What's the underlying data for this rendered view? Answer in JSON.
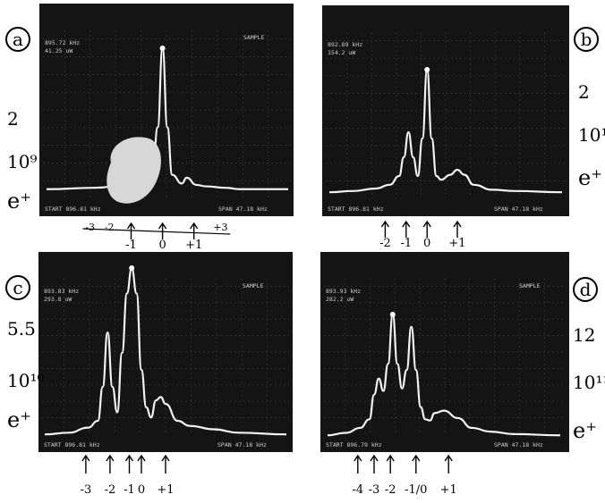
{
  "chart_data": [
    {
      "panel_id": "a",
      "type": "line",
      "left_labels": [
        "2",
        "10⁹",
        "e⁺"
      ],
      "screen_text": {
        "marker_freq": "895.72 kHz",
        "marker_level": "41.25 uW",
        "mode": "SAMPLE",
        "start": "START 896.81 kHz",
        "stop": "SPAN 47.18 kHz"
      },
      "x": [
        0,
        0.2,
        0.34,
        0.4,
        0.44,
        0.46,
        0.48,
        0.5,
        0.52,
        0.56,
        0.58,
        0.62,
        0.66,
        0.74,
        0.8,
        0.86,
        0.92,
        1.0
      ],
      "y": [
        0.02,
        0.03,
        0.05,
        0.08,
        0.16,
        0.45,
        1.0,
        0.45,
        0.12,
        0.06,
        0.1,
        0.05,
        0.04,
        0.03,
        0.02,
        0.02,
        0.02,
        0.02
      ],
      "ylim": [
        0,
        1
      ],
      "sideband_labels": [
        "-1",
        "0",
        "+1"
      ],
      "sideband_x": [
        0.35,
        0.48,
        0.61
      ],
      "extra_struck_marks": [
        "-3",
        "-2",
        "+3"
      ]
    },
    {
      "panel_id": "b",
      "type": "line",
      "left_labels": [
        "2",
        "10¹⁰",
        "e⁺"
      ],
      "screen_text": {
        "marker_freq": "892.89 kHz",
        "marker_level": "154.2 uW",
        "start": "START 896.81 kHz",
        "stop": "SPAN 47.18 kHz"
      },
      "x": [
        0,
        0.1,
        0.2,
        0.26,
        0.3,
        0.32,
        0.34,
        0.36,
        0.38,
        0.4,
        0.42,
        0.44,
        0.46,
        0.48,
        0.52,
        0.55,
        0.58,
        0.62,
        0.7,
        0.8,
        1.0
      ],
      "y": [
        0.02,
        0.03,
        0.05,
        0.08,
        0.15,
        0.3,
        0.5,
        0.3,
        0.15,
        0.45,
        1.0,
        0.45,
        0.15,
        0.12,
        0.16,
        0.2,
        0.16,
        0.08,
        0.04,
        0.03,
        0.02
      ],
      "ylim": [
        0,
        1
      ],
      "sideband_labels": [
        "-2",
        "-1",
        "0",
        "+1"
      ],
      "sideband_x": [
        0.24,
        0.33,
        0.42,
        0.55
      ]
    },
    {
      "panel_id": "c",
      "type": "line",
      "left_labels": [
        "5.5",
        "10¹⁰",
        "e⁺"
      ],
      "screen_text": {
        "marker_freq": "893.83 kHz",
        "marker_level": "293.8 uW",
        "mode": "SAMPLE",
        "start": "START 896.81 kHz",
        "stop": "SPAN 47.18 kHz"
      },
      "x": [
        0,
        0.1,
        0.18,
        0.22,
        0.24,
        0.26,
        0.28,
        0.3,
        0.32,
        0.34,
        0.36,
        0.38,
        0.4,
        0.42,
        0.44,
        0.46,
        0.48,
        0.5,
        0.55,
        0.6,
        0.7,
        0.8,
        1.0
      ],
      "y": [
        0.02,
        0.03,
        0.06,
        0.1,
        0.3,
        0.62,
        0.3,
        0.15,
        0.5,
        0.85,
        1.0,
        0.85,
        0.4,
        0.18,
        0.12,
        0.22,
        0.24,
        0.2,
        0.1,
        0.07,
        0.05,
        0.03,
        0.02
      ],
      "ylim": [
        0,
        1
      ],
      "sideband_labels": [
        "-3",
        "-2",
        "-1",
        "0",
        "+1"
      ],
      "sideband_x": [
        0.17,
        0.27,
        0.35,
        0.4,
        0.5
      ]
    },
    {
      "panel_id": "d",
      "type": "line",
      "left_labels": [
        "12",
        "10¹¹",
        "e⁺"
      ],
      "screen_text": {
        "marker_freq": "893.93 kHz",
        "marker_level": "282.2 uW",
        "mode": "SAMPLE",
        "start": "START 896.79 kHz",
        "stop": "SPAN 47.18 kHz"
      },
      "x": [
        0,
        0.08,
        0.14,
        0.18,
        0.2,
        0.22,
        0.24,
        0.26,
        0.28,
        0.3,
        0.32,
        0.34,
        0.36,
        0.38,
        0.4,
        0.42,
        0.44,
        0.46,
        0.5,
        0.56,
        0.62,
        0.7,
        0.8,
        1.0
      ],
      "y": [
        0.02,
        0.04,
        0.08,
        0.15,
        0.35,
        0.48,
        0.38,
        0.6,
        1.0,
        0.6,
        0.4,
        0.55,
        0.9,
        0.55,
        0.25,
        0.15,
        0.14,
        0.2,
        0.22,
        0.16,
        0.08,
        0.05,
        0.03,
        0.02
      ],
      "ylim": [
        0,
        1
      ],
      "sideband_labels": [
        "-4",
        "-3",
        "-2",
        "-1/0",
        "+1"
      ],
      "sideband_x": [
        0.13,
        0.2,
        0.27,
        0.38,
        0.52
      ]
    }
  ]
}
